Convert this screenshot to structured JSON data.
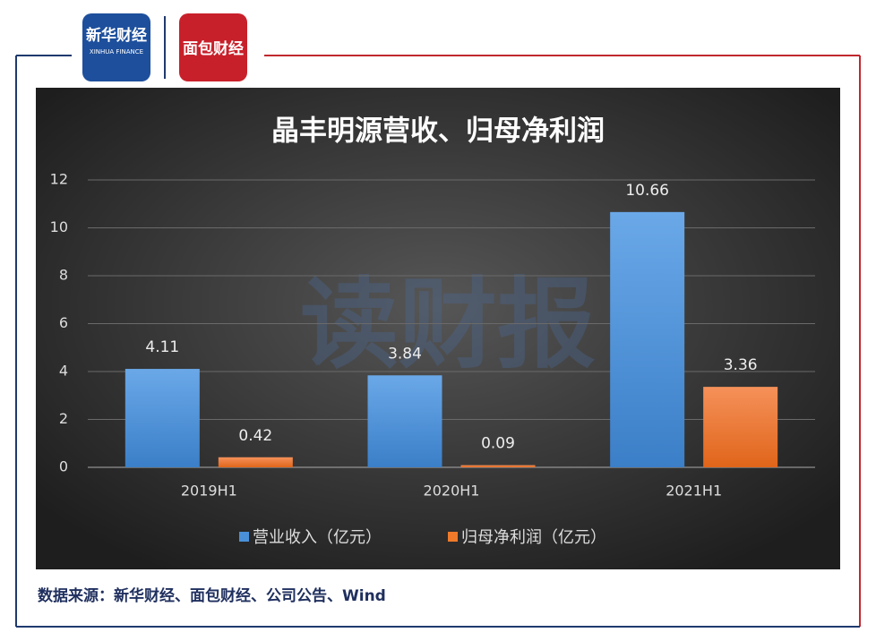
{
  "header": {
    "logo_left": "新华财经",
    "logo_left_sub": "XINHUA FINANCE",
    "logo_right": "面包财经"
  },
  "watermark": "读财报",
  "chart_data": {
    "type": "bar",
    "title": "晶丰明源营收、归母净利润",
    "categories": [
      "2019H1",
      "2020H1",
      "2021H1"
    ],
    "series": [
      {
        "name": "营业收入（亿元）",
        "color": "#4a90d9",
        "values": [
          4.11,
          3.84,
          10.66
        ]
      },
      {
        "name": "归母净利润（亿元）",
        "color": "#f07a2a",
        "values": [
          0.42,
          0.09,
          3.36
        ]
      }
    ],
    "ylim": [
      0,
      12
    ],
    "yticks": [
      0,
      2,
      4,
      6,
      8,
      10,
      12
    ],
    "grid": true,
    "legend": "bottom"
  },
  "source": "数据来源：新华财经、面包财经、公司公告、Wind"
}
